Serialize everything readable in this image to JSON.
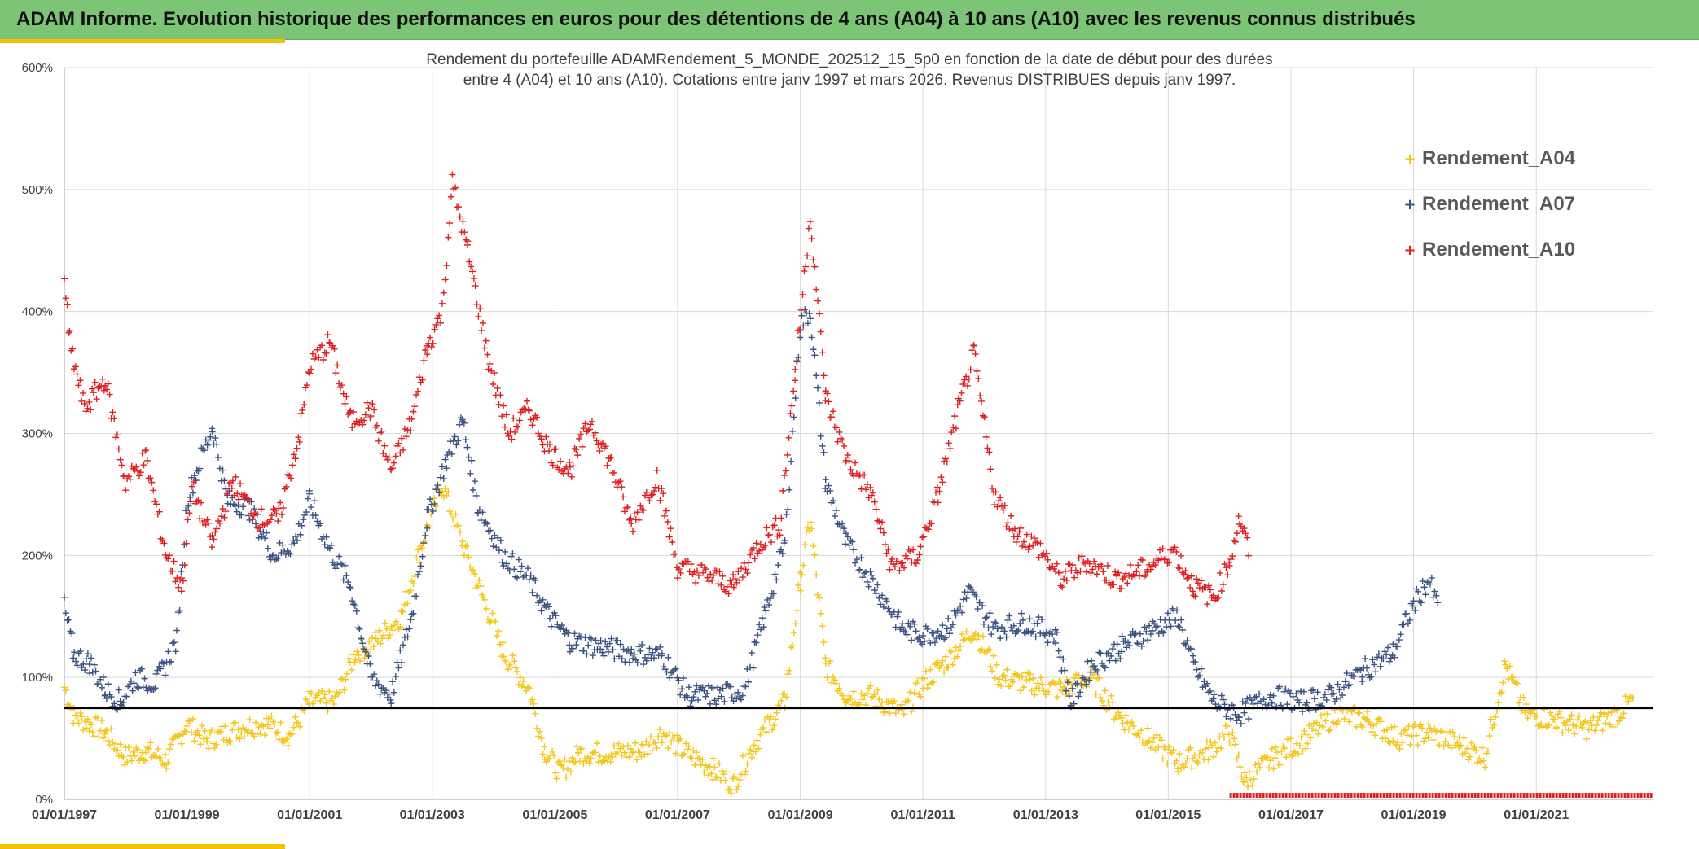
{
  "header": {
    "title": "ADAM Informe. Evolution historique des performances en euros pour des détentions de 4 ans (A04) à 10 ans (A10) avec les revenus connus distribués",
    "background": "#7cc576",
    "accent": "#f2c200"
  },
  "chart_data": {
    "type": "scatter",
    "title_line1": "Rendement du portefeuille ADAMRendement_5_MONDE_202512_15_5p0  en fonction de la date de début pour des durées",
    "title_line2": "entre 4 (A04) et 10 ans (A10). Cotations entre janv 1997 et mars 2026. Revenus DISTRIBUES depuis janv 1997.",
    "xlabel": "",
    "ylabel": "",
    "x_range": [
      "1997-01-01",
      "2022-12-31"
    ],
    "ylim": [
      0,
      600
    ],
    "y_ticks": [
      "0%",
      "100%",
      "200%",
      "300%",
      "400%",
      "500%",
      "600%"
    ],
    "x_ticks": [
      "01/01/1997",
      "01/01/1999",
      "01/01/2001",
      "01/01/2003",
      "01/01/2005",
      "01/01/2007",
      "01/01/2009",
      "01/01/2011",
      "01/01/2013",
      "01/01/2015",
      "01/01/2017",
      "01/01/2019",
      "01/01/2021"
    ],
    "grid": true,
    "legend_position": "top-right",
    "reference_line": {
      "y": 75,
      "color": "#000000"
    },
    "series": [
      {
        "name": "Rendement_A04",
        "color": "#f5c518",
        "points": [
          [
            "1997-01-01",
            92
          ],
          [
            "1997-03-01",
            68
          ],
          [
            "1997-06-01",
            62
          ],
          [
            "1997-09-01",
            55
          ],
          [
            "1998-01-01",
            35
          ],
          [
            "1998-05-01",
            40
          ],
          [
            "1998-09-01",
            32
          ],
          [
            "1999-01-01",
            62
          ],
          [
            "1999-05-01",
            48
          ],
          [
            "1999-09-01",
            55
          ],
          [
            "2000-01-01",
            60
          ],
          [
            "2000-05-01",
            62
          ],
          [
            "2000-09-01",
            52
          ],
          [
            "2001-01-01",
            80
          ],
          [
            "2001-06-01",
            80
          ],
          [
            "2001-10-01",
            120
          ],
          [
            "2002-02-01",
            130
          ],
          [
            "2002-07-01",
            150
          ],
          [
            "2002-11-01",
            210
          ],
          [
            "2003-03-01",
            258
          ],
          [
            "2003-07-01",
            210
          ],
          [
            "2003-11-01",
            165
          ],
          [
            "2004-03-01",
            120
          ],
          [
            "2004-08-01",
            90
          ],
          [
            "2004-11-01",
            40
          ],
          [
            "2005-02-01",
            22
          ],
          [
            "2005-06-01",
            38
          ],
          [
            "2005-12-01",
            38
          ],
          [
            "2006-06-01",
            40
          ],
          [
            "2006-10-01",
            55
          ],
          [
            "2007-02-01",
            40
          ],
          [
            "2007-08-01",
            25
          ],
          [
            "2007-12-01",
            12
          ],
          [
            "2008-04-01",
            45
          ],
          [
            "2008-10-01",
            80
          ],
          [
            "2009-01-01",
            180
          ],
          [
            "2009-03-01",
            230
          ],
          [
            "2009-06-01",
            110
          ],
          [
            "2009-10-01",
            85
          ],
          [
            "2010-03-01",
            85
          ],
          [
            "2010-09-01",
            70
          ],
          [
            "2011-01-01",
            95
          ],
          [
            "2011-06-01",
            115
          ],
          [
            "2011-11-01",
            140
          ],
          [
            "2012-04-01",
            100
          ],
          [
            "2012-10-01",
            95
          ],
          [
            "2013-04-01",
            90
          ],
          [
            "2013-10-01",
            100
          ],
          [
            "2014-03-01",
            70
          ],
          [
            "2014-09-01",
            50
          ],
          [
            "2015-03-01",
            30
          ],
          [
            "2015-09-01",
            40
          ],
          [
            "2016-01-01",
            55
          ],
          [
            "2016-04-01",
            15
          ],
          [
            "2016-10-01",
            35
          ],
          [
            "2017-04-01",
            50
          ],
          [
            "2017-10-01",
            70
          ],
          [
            "2018-04-01",
            65
          ],
          [
            "2018-10-01",
            50
          ],
          [
            "2019-04-01",
            55
          ],
          [
            "2019-10-01",
            45
          ],
          [
            "2020-03-01",
            35
          ],
          [
            "2020-07-01",
            110
          ],
          [
            "2020-11-01",
            70
          ],
          [
            "2021-05-01",
            65
          ],
          [
            "2021-11-01",
            58
          ],
          [
            "2022-05-01",
            70
          ],
          [
            "2022-08-01",
            82
          ]
        ]
      },
      {
        "name": "Rendement_A07",
        "color": "#3b5282",
        "points": [
          [
            "1997-01-01",
            158
          ],
          [
            "1997-03-01",
            118
          ],
          [
            "1997-06-01",
            112
          ],
          [
            "1997-09-01",
            90
          ],
          [
            "1997-12-01",
            80
          ],
          [
            "1998-03-01",
            100
          ],
          [
            "1998-07-01",
            95
          ],
          [
            "1998-11-01",
            130
          ],
          [
            "1999-01-01",
            245
          ],
          [
            "1999-03-01",
            270
          ],
          [
            "1999-06-01",
            305
          ],
          [
            "1999-09-01",
            245
          ],
          [
            "2000-01-01",
            240
          ],
          [
            "2000-06-01",
            200
          ],
          [
            "2000-10-01",
            210
          ],
          [
            "2001-01-01",
            245
          ],
          [
            "2001-05-01",
            205
          ],
          [
            "2001-09-01",
            175
          ],
          [
            "2002-01-01",
            100
          ],
          [
            "2002-05-01",
            85
          ],
          [
            "2002-09-01",
            150
          ],
          [
            "2002-12-01",
            230
          ],
          [
            "2003-04-01",
            280
          ],
          [
            "2003-07-01",
            310
          ],
          [
            "2003-10-01",
            240
          ],
          [
            "2004-03-01",
            200
          ],
          [
            "2004-08-01",
            180
          ],
          [
            "2004-12-01",
            150
          ],
          [
            "2005-04-01",
            130
          ],
          [
            "2005-10-01",
            125
          ],
          [
            "2006-04-01",
            120
          ],
          [
            "2006-10-01",
            118
          ],
          [
            "2007-03-01",
            85
          ],
          [
            "2007-09-01",
            85
          ],
          [
            "2008-02-01",
            90
          ],
          [
            "2008-06-01",
            150
          ],
          [
            "2008-10-01",
            210
          ],
          [
            "2009-01-01",
            390
          ],
          [
            "2009-03-01",
            400
          ],
          [
            "2009-06-01",
            260
          ],
          [
            "2009-10-01",
            210
          ],
          [
            "2010-03-01",
            180
          ],
          [
            "2010-09-01",
            140
          ],
          [
            "2011-01-01",
            135
          ],
          [
            "2011-06-01",
            140
          ],
          [
            "2011-10-01",
            170
          ],
          [
            "2012-03-01",
            140
          ],
          [
            "2012-09-01",
            145
          ],
          [
            "2013-03-01",
            135
          ],
          [
            "2013-06-01",
            80
          ],
          [
            "2013-10-01",
            110
          ],
          [
            "2014-04-01",
            125
          ],
          [
            "2014-10-01",
            140
          ],
          [
            "2015-03-01",
            150
          ],
          [
            "2015-06-01",
            110
          ],
          [
            "2015-10-01",
            80
          ],
          [
            "2016-03-01",
            70
          ],
          [
            "2016-09-01",
            85
          ],
          [
            "2017-03-01",
            80
          ],
          [
            "2017-09-01",
            85
          ],
          [
            "2018-03-01",
            105
          ],
          [
            "2018-09-01",
            120
          ],
          [
            "2019-01-01",
            160
          ],
          [
            "2019-04-01",
            180
          ],
          [
            "2019-06-01",
            155
          ]
        ]
      },
      {
        "name": "Rendement_A10",
        "color": "#e02020",
        "points": [
          [
            "1997-01-01",
            430
          ],
          [
            "1997-02-01",
            375
          ],
          [
            "1997-05-01",
            320
          ],
          [
            "1997-09-01",
            345
          ],
          [
            "1998-01-01",
            260
          ],
          [
            "1998-05-01",
            280
          ],
          [
            "1998-09-01",
            200
          ],
          [
            "1998-12-01",
            175
          ],
          [
            "1999-02-01",
            255
          ],
          [
            "1999-06-01",
            210
          ],
          [
            "1999-10-01",
            260
          ],
          [
            "2000-03-01",
            230
          ],
          [
            "2000-07-01",
            230
          ],
          [
            "2000-11-01",
            300
          ],
          [
            "2001-01-01",
            355
          ],
          [
            "2001-05-01",
            375
          ],
          [
            "2001-09-01",
            310
          ],
          [
            "2002-01-01",
            320
          ],
          [
            "2002-05-01",
            270
          ],
          [
            "2002-09-01",
            310
          ],
          [
            "2002-12-01",
            370
          ],
          [
            "2003-03-01",
            400
          ],
          [
            "2003-05-01",
            505
          ],
          [
            "2003-08-01",
            450
          ],
          [
            "2003-12-01",
            360
          ],
          [
            "2004-04-01",
            300
          ],
          [
            "2004-08-01",
            320
          ],
          [
            "2004-12-01",
            285
          ],
          [
            "2005-04-01",
            270
          ],
          [
            "2005-08-01",
            310
          ],
          [
            "2005-12-01",
            275
          ],
          [
            "2006-04-01",
            225
          ],
          [
            "2006-09-01",
            265
          ],
          [
            "2007-01-01",
            190
          ],
          [
            "2007-06-01",
            185
          ],
          [
            "2007-12-01",
            175
          ],
          [
            "2008-05-01",
            210
          ],
          [
            "2008-09-01",
            225
          ],
          [
            "2008-12-01",
            350
          ],
          [
            "2009-03-01",
            480
          ],
          [
            "2009-06-01",
            330
          ],
          [
            "2009-10-01",
            280
          ],
          [
            "2010-03-01",
            250
          ],
          [
            "2010-07-01",
            190
          ],
          [
            "2010-12-01",
            200
          ],
          [
            "2011-04-01",
            250
          ],
          [
            "2011-08-01",
            320
          ],
          [
            "2011-11-01",
            365
          ],
          [
            "2012-03-01",
            250
          ],
          [
            "2012-07-01",
            220
          ],
          [
            "2012-12-01",
            205
          ],
          [
            "2013-04-01",
            180
          ],
          [
            "2013-09-01",
            195
          ],
          [
            "2014-03-01",
            180
          ],
          [
            "2014-09-01",
            190
          ],
          [
            "2015-02-01",
            205
          ],
          [
            "2015-06-01",
            175
          ],
          [
            "2015-10-01",
            165
          ],
          [
            "2016-01-01",
            195
          ],
          [
            "2016-03-01",
            230
          ],
          [
            "2016-05-01",
            200
          ]
        ]
      }
    ],
    "zero_band": {
      "from": "2016-01-01",
      "to": "2022-12-31",
      "color": "#e02020"
    }
  }
}
